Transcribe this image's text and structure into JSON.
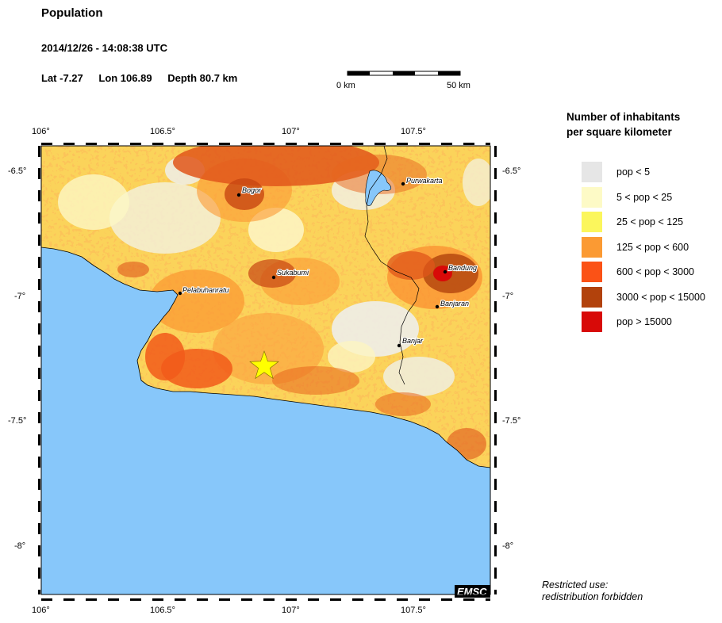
{
  "header": {
    "title": "Population",
    "datetime": "2014/12/26 - 14:08:38 UTC",
    "lat": "Lat -7.27",
    "lon": "Lon 106.89",
    "depth": "Depth  80.7 km"
  },
  "scale_bar": {
    "start_label": "0 km",
    "end_label": "50 km"
  },
  "map": {
    "lon_ticks": [
      "106°",
      "106.5°",
      "107°",
      "107.5°"
    ],
    "lat_ticks": [
      "-6.5°",
      "-7°",
      "-7.5°",
      "-8°"
    ],
    "cities": [
      "Bogor",
      "Purwakarta",
      "Sukabumi",
      "Bandung",
      "Pelabuhanratu",
      "Banjaran",
      "Banjar"
    ],
    "epicenter": {
      "lon": 106.89,
      "lat": -7.27,
      "marker": "star-icon",
      "color": "#ffff00"
    },
    "sea_color": "#87c7fa",
    "watermark": "EMSC"
  },
  "legend": {
    "title_line1": "Number of inhabitants",
    "title_line2": "per square kilometer",
    "items": [
      {
        "label": "pop < 5",
        "color": "#e6e6e6"
      },
      {
        "label": "5 < pop < 25",
        "color": "#fdfac6"
      },
      {
        "label": "25 < pop < 125",
        "color": "#fbf65c"
      },
      {
        "label": "125 < pop < 600",
        "color": "#fb9a33"
      },
      {
        "label": "600 < pop < 3000",
        "color": "#fb5216"
      },
      {
        "label": "3000 < pop < 15000",
        "color": "#b2420c"
      },
      {
        "label": "pop > 15000",
        "color": "#d80a08"
      }
    ]
  },
  "note": {
    "line1": "Restricted use:",
    "line2": "redistribution forbidden"
  }
}
